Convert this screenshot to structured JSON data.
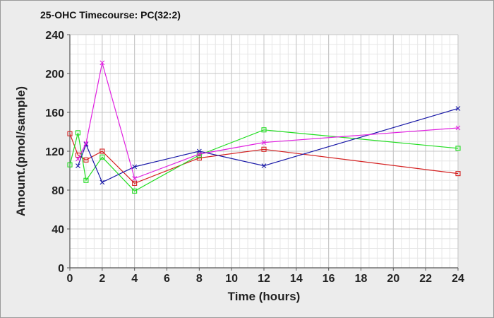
{
  "chart_data": {
    "type": "line",
    "title": "25-OHC Timecourse: PC(32:2)",
    "xlabel": "Time (hours)",
    "ylabel": "Amount.(pmol/sample)",
    "xlim": [
      0,
      24
    ],
    "ylim": [
      0,
      240
    ],
    "xticks": [
      0,
      2,
      4,
      6,
      8,
      10,
      12,
      14,
      16,
      18,
      20,
      22,
      24
    ],
    "yticks": [
      0,
      40,
      80,
      120,
      160,
      200,
      240
    ],
    "grid": true,
    "series": [
      {
        "color": "#d42020",
        "marker": "square",
        "x": [
          0,
          0.5,
          1,
          2,
          4,
          8,
          12,
          24
        ],
        "y": [
          138,
          116,
          111,
          120,
          87,
          113,
          122,
          97
        ]
      },
      {
        "color": "#22dd22",
        "marker": "square",
        "x": [
          0,
          0.5,
          1,
          2,
          4,
          8,
          12,
          24
        ],
        "y": [
          106,
          139,
          90,
          114,
          79,
          116,
          142,
          123
        ]
      },
      {
        "color": "#1a1aa8",
        "marker": "x",
        "x": [
          0.5,
          1,
          2,
          4,
          8,
          12,
          24
        ],
        "y": [
          105,
          127,
          88,
          104,
          120,
          105,
          164
        ]
      },
      {
        "color": "#e020e0",
        "marker": "x",
        "x": [
          0.5,
          1,
          2,
          4,
          8,
          12,
          24
        ],
        "y": [
          112,
          128,
          211,
          92,
          117,
          129,
          144
        ]
      }
    ]
  }
}
